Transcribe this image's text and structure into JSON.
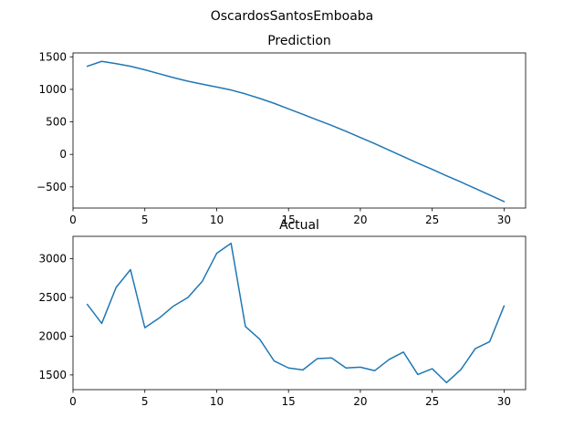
{
  "figure": {
    "suptitle": "OscardosSantosEmboaba"
  },
  "chart_data": [
    {
      "type": "line",
      "title": "Prediction",
      "xlabel": "",
      "ylabel": "",
      "x": [
        1,
        2,
        3,
        4,
        5,
        6,
        7,
        8,
        9,
        10,
        11,
        12,
        13,
        14,
        15,
        16,
        17,
        18,
        19,
        20,
        21,
        22,
        23,
        24,
        25,
        26,
        27,
        28,
        29,
        30
      ],
      "series": [
        {
          "color": "#1f77b4",
          "values": [
            1355,
            1430,
            1395,
            1355,
            1300,
            1240,
            1180,
            1125,
            1080,
            1035,
            990,
            930,
            860,
            785,
            700,
            615,
            530,
            445,
            355,
            260,
            165,
            65,
            -35,
            -135,
            -230,
            -330,
            -425,
            -525,
            -625,
            -725
          ]
        }
      ],
      "xlim": [
        0,
        31.5
      ],
      "ylim": [
        -825,
        1560
      ],
      "xticks": [
        0,
        5,
        10,
        15,
        20,
        25,
        30
      ],
      "yticks": [
        -500,
        0,
        500,
        1000,
        1500
      ],
      "grid": false
    },
    {
      "type": "line",
      "title": "Actual",
      "xlabel": "",
      "ylabel": "",
      "x": [
        1,
        2,
        3,
        4,
        5,
        6,
        7,
        8,
        9,
        10,
        11,
        12,
        13,
        14,
        15,
        16,
        17,
        18,
        19,
        20,
        21,
        22,
        23,
        24,
        25,
        26,
        27,
        28,
        29,
        30
      ],
      "series": [
        {
          "color": "#1f77b4",
          "values": [
            2410,
            2165,
            2630,
            2860,
            2110,
            2235,
            2390,
            2500,
            2710,
            3070,
            3200,
            2125,
            1960,
            1680,
            1590,
            1565,
            1710,
            1720,
            1590,
            1600,
            1555,
            1700,
            1795,
            1505,
            1580,
            1400,
            1570,
            1840,
            1930,
            2390
          ]
        }
      ],
      "xlim": [
        0,
        31.5
      ],
      "ylim": [
        1310,
        3290
      ],
      "xticks": [
        0,
        5,
        10,
        15,
        20,
        25,
        30
      ],
      "yticks": [
        1500,
        2000,
        2500,
        3000
      ],
      "grid": false
    }
  ]
}
